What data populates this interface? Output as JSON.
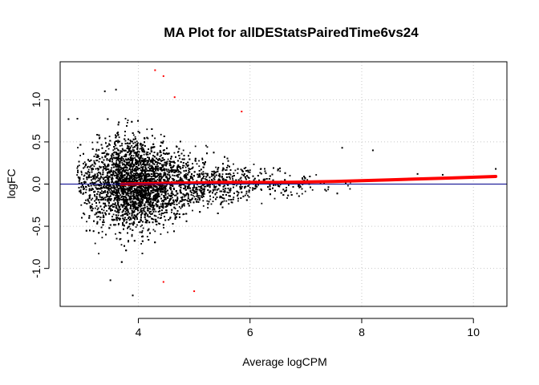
{
  "chart_data": {
    "type": "scatter",
    "title": "MA Plot for allDEStatsPairedTime6vs24",
    "xlabel": "Average logCPM",
    "ylabel": "logFC",
    "xlim": [
      2.6,
      10.6
    ],
    "ylim": [
      -1.45,
      1.45
    ],
    "xticks": [
      4,
      6,
      8,
      10
    ],
    "xtick_labels": [
      "4",
      "6",
      "8",
      "10"
    ],
    "yticks": [
      -1.0,
      -0.5,
      0.0,
      0.5,
      1.0
    ],
    "ytick_labels": [
      "-1.0",
      "-0.5",
      "0.0",
      "0.5",
      "1.0"
    ],
    "grid": true,
    "hline": {
      "y": 0,
      "color": "#00008b"
    },
    "colors": {
      "points": "#000000",
      "highlight": "#ff0000",
      "trend": "#ff0000",
      "grid": "#c8c8c8",
      "frame": "#000000"
    },
    "highlighted_points": [
      {
        "x": 4.3,
        "y": 1.35
      },
      {
        "x": 4.45,
        "y": 1.28
      },
      {
        "x": 4.65,
        "y": 1.03
      },
      {
        "x": 5.85,
        "y": 0.86
      },
      {
        "x": 4.45,
        "y": -1.16
      },
      {
        "x": 5.0,
        "y": -1.27
      }
    ],
    "outlier_points": [
      {
        "x": 2.75,
        "y": 0.77
      },
      {
        "x": 7.65,
        "y": 0.43
      },
      {
        "x": 8.2,
        "y": 0.4
      },
      {
        "x": 9.0,
        "y": 0.12
      },
      {
        "x": 9.45,
        "y": 0.11
      },
      {
        "x": 10.4,
        "y": 0.18
      },
      {
        "x": 3.9,
        "y": -1.32
      },
      {
        "x": 3.5,
        "y": -1.14
      },
      {
        "x": 3.4,
        "y": 1.1
      },
      {
        "x": 3.6,
        "y": 1.12
      }
    ],
    "trend_line": {
      "x": [
        3.7,
        4.5,
        5.5,
        6.5,
        7.5,
        8.5,
        9.5,
        10.4
      ],
      "y": [
        0.0,
        0.01,
        0.02,
        0.02,
        0.03,
        0.05,
        0.07,
        0.09
      ]
    },
    "cloud": {
      "n_points": 9000,
      "x_peak": 3.8,
      "x_range": [
        2.9,
        7.8
      ],
      "spread_at_peak": 0.28,
      "spread_decay": 0.45
    }
  }
}
